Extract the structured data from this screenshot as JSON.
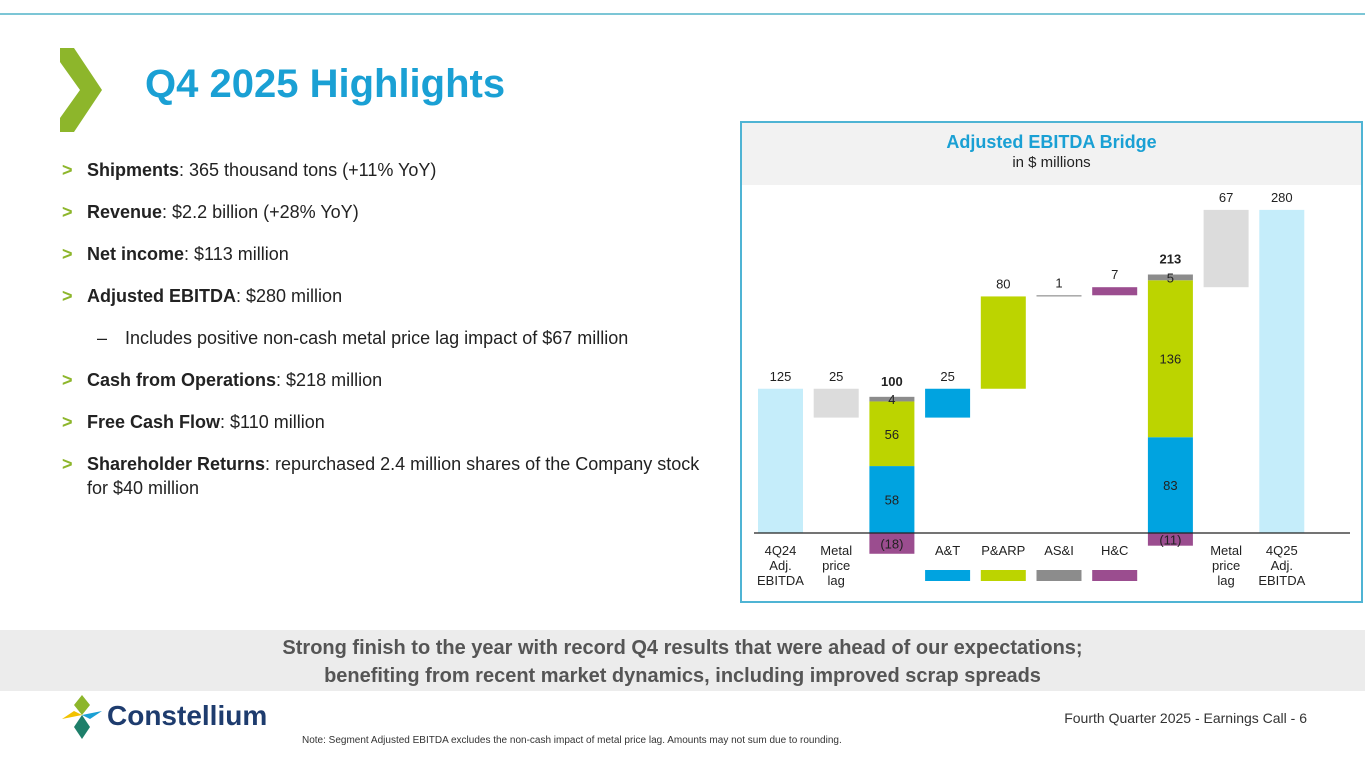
{
  "slide": {
    "title": "Q4 2025 Highlights",
    "bullets": [
      {
        "bold": "Shipments",
        "text": ": 365 thousand tons (+11% YoY)"
      },
      {
        "bold": "Revenue",
        "text": ": $2.2 billion (+28% YoY)"
      },
      {
        "bold": "Net income",
        "text": ": $113 million"
      },
      {
        "bold": "Adjusted EBITDA",
        "text": ": $280 million"
      },
      {
        "bold": "Cash from Operations",
        "text": ": $218 million"
      },
      {
        "bold": "Free Cash Flow",
        "text": ": $110 million"
      },
      {
        "bold": "Shareholder Returns",
        "text": ": repurchased 2.4 million shares of the Company stock for $40 million"
      }
    ],
    "sub_bullet": "Includes positive non-cash metal price lag impact of $67 million",
    "bullet_marker": ">",
    "sub_marker": "–",
    "banner_line1": "Strong finish to the year with record Q4 results that were ahead of our expectations;",
    "banner_line2": "benefiting from recent market dynamics, including improved scrap spreads",
    "logo_text": "Constellium",
    "footer": "Fourth Quarter 2025 - Earnings Call - 6",
    "note": "Note: Segment Adjusted EBITDA excludes the non-cash impact of metal price lag. Amounts may not sum due to rounding."
  },
  "colors": {
    "accent_blue": "#1aa0d4",
    "accent_green": "#8db62b",
    "at": "#00a3e0",
    "parp": "#bcd400",
    "asi": "#8c8c8c",
    "hc": "#9b4d8f",
    "base": "#c5edfa",
    "lag": "#dcdcdc"
  },
  "chart_data": {
    "type": "waterfall",
    "title": "Adjusted EBITDA Bridge",
    "subtitle": "in $ millions",
    "ylim": [
      -20,
      290
    ],
    "steps": [
      {
        "name": "4Q24 Adj. EBITDA",
        "label_lines": [
          "4Q24",
          "Adj.",
          "EBITDA"
        ],
        "kind": "total",
        "value": 125,
        "label": "125"
      },
      {
        "name": "Metal price lag",
        "label_lines": [
          "Metal",
          "price",
          "lag"
        ],
        "kind": "delta",
        "value": -25,
        "label": "25"
      },
      {
        "name": "Subtotal",
        "label_lines": [],
        "kind": "stack",
        "total_label": "100",
        "components": [
          {
            "segment": "H&C",
            "value": -18,
            "label": "(18)"
          },
          {
            "segment": "A&T",
            "value": 58,
            "label": "58"
          },
          {
            "segment": "P&ARP",
            "value": 56,
            "label": "56"
          },
          {
            "segment": "AS&I",
            "value": 4,
            "label": "4"
          }
        ]
      },
      {
        "name": "A&T",
        "label_lines": [
          "A&T"
        ],
        "kind": "delta",
        "segment": "A&T",
        "value": 25,
        "label": "25"
      },
      {
        "name": "P&ARP",
        "label_lines": [
          "P&ARP"
        ],
        "kind": "delta",
        "segment": "P&ARP",
        "value": 80,
        "label": "80"
      },
      {
        "name": "AS&I",
        "label_lines": [
          "AS&I"
        ],
        "kind": "delta",
        "segment": "AS&I",
        "value": 1,
        "label": "1"
      },
      {
        "name": "H&C",
        "label_lines": [
          "H&C"
        ],
        "kind": "delta",
        "segment": "H&C",
        "value": 7,
        "label": "7"
      },
      {
        "name": "Subtotal",
        "label_lines": [],
        "kind": "stack",
        "total_label": "213",
        "components": [
          {
            "segment": "H&C",
            "value": -11,
            "label": "(11)"
          },
          {
            "segment": "A&T",
            "value": 83,
            "label": "83"
          },
          {
            "segment": "P&ARP",
            "value": 136,
            "label": "136"
          },
          {
            "segment": "AS&I",
            "value": 5,
            "label": "5"
          }
        ]
      },
      {
        "name": "Metal price lag",
        "label_lines": [
          "Metal",
          "price",
          "lag"
        ],
        "kind": "delta",
        "value": 67,
        "label": "67"
      },
      {
        "name": "4Q25 Adj. EBITDA",
        "label_lines": [
          "4Q25",
          "Adj.",
          "EBITDA"
        ],
        "kind": "total",
        "value": 280,
        "label": "280"
      }
    ],
    "legend_segments": [
      "A&T",
      "P&ARP",
      "AS&I",
      "H&C"
    ]
  }
}
